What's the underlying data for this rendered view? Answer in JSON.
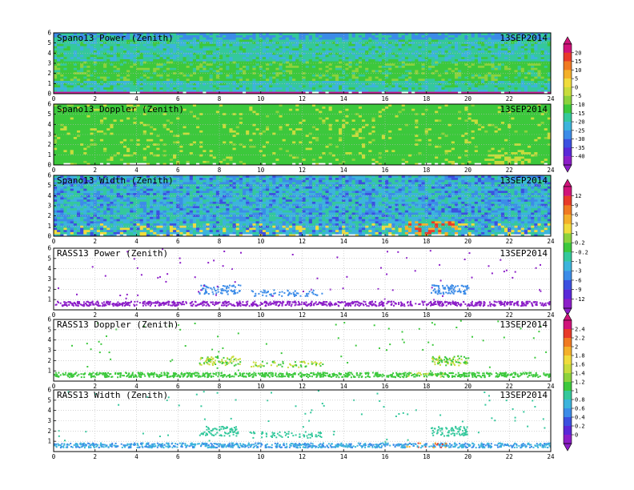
{
  "chart_data": [
    {
      "type": "heatmap",
      "title": "Spano13 Power (Zenith)",
      "date": "13SEP2014",
      "xlim": [
        0,
        24
      ],
      "ylim": [
        0,
        6
      ],
      "x_ticks": [
        "0",
        "2",
        "4",
        "6",
        "8",
        "10",
        "12",
        "14",
        "16",
        "18",
        "20",
        "22",
        "24"
      ],
      "y_ticks": [
        "0",
        "1",
        "2",
        "3",
        "4",
        "5",
        "6"
      ],
      "grid": true,
      "colorbar_ref": "A"
    },
    {
      "type": "heatmap",
      "title": "Spano13 Doppler (Zenith)",
      "date": "13SEP2014",
      "xlim": [
        0,
        24
      ],
      "ylim": [
        0,
        6
      ],
      "x_ticks": [
        "0",
        "2",
        "4",
        "6",
        "8",
        "10",
        "12",
        "14",
        "16",
        "18",
        "20",
        "22",
        "24"
      ],
      "y_ticks": [
        "0",
        "1",
        "2",
        "3",
        "4",
        "5",
        "6"
      ],
      "grid": true,
      "colorbar_ref": "A"
    },
    {
      "type": "heatmap",
      "title": "Spano13 Width (Zenith)",
      "date": "13SEP2014",
      "xlim": [
        0,
        24
      ],
      "ylim": [
        0,
        6
      ],
      "x_ticks": [
        "0",
        "2",
        "4",
        "6",
        "8",
        "10",
        "12",
        "14",
        "16",
        "18",
        "20",
        "22",
        "24"
      ],
      "y_ticks": [
        "0",
        "1",
        "2",
        "3",
        "4",
        "5",
        "6"
      ],
      "grid": true,
      "colorbar_ref": "B"
    },
    {
      "type": "scatter",
      "title": "RASS13 Power (Zenith)",
      "date": "13SEP2014",
      "xlim": [
        0,
        24
      ],
      "ylim": [
        0,
        6
      ],
      "x_ticks": [
        "0",
        "2",
        "4",
        "6",
        "8",
        "10",
        "12",
        "14",
        "16",
        "18",
        "20",
        "22",
        "24"
      ],
      "y_ticks": [
        "1",
        "2",
        "3",
        "4",
        "5",
        "6"
      ],
      "grid": true,
      "colorbar_ref": "B"
    },
    {
      "type": "scatter",
      "title": "RASS13 Doppler (Zenith)",
      "date": "13SEP2014",
      "xlim": [
        0,
        24
      ],
      "ylim": [
        0,
        6
      ],
      "x_ticks": [
        "0",
        "2",
        "4",
        "6",
        "8",
        "10",
        "12",
        "14",
        "16",
        "18",
        "20",
        "22",
        "24"
      ],
      "y_ticks": [
        "1",
        "2",
        "3",
        "4",
        "5",
        "6"
      ],
      "grid": true,
      "colorbar_ref": "C"
    },
    {
      "type": "scatter",
      "title": "RASS13 Width (Zenith)",
      "date": "13SEP2014",
      "xlim": [
        0,
        24
      ],
      "ylim": [
        0,
        6
      ],
      "x_ticks": [
        "0",
        "2",
        "4",
        "6",
        "8",
        "10",
        "12",
        "14",
        "16",
        "18",
        "20",
        "22",
        "24"
      ],
      "y_ticks": [
        "1",
        "2",
        "3",
        "4",
        "5",
        "6"
      ],
      "grid": true,
      "colorbar_ref": "C"
    }
  ],
  "colorbars": {
    "A": {
      "labels": [
        "20",
        "15",
        "10",
        "5",
        "0",
        "-5",
        "-10",
        "-15",
        "-20",
        "-25",
        "-30",
        "-35",
        "-40"
      ],
      "colors": [
        "#d0147a",
        "#e83a2a",
        "#f07a22",
        "#f4b02a",
        "#f0dc3c",
        "#c8dc3c",
        "#8cd23c",
        "#3cc83c",
        "#34c89c",
        "#3cb4dc",
        "#3c8ce8",
        "#3c50e0",
        "#5a28d8",
        "#8c1ec8"
      ]
    },
    "B": {
      "labels": [
        "12",
        "9",
        "6",
        "3",
        "1",
        "0.2",
        "-0.2",
        "-1",
        "-3",
        "-6",
        "-9",
        "-12"
      ],
      "colors": [
        "#d0147a",
        "#e83a2a",
        "#f07a22",
        "#f4b02a",
        "#f0dc3c",
        "#8cd23c",
        "#3cc83c",
        "#34c89c",
        "#3cb4dc",
        "#3c8ce8",
        "#3c50e0",
        "#5a28d8",
        "#8c1ec8"
      ]
    },
    "C": {
      "labels": [
        "2.4",
        "2.2",
        "2",
        "1.8",
        "1.6",
        "1.4",
        "1.2",
        "1",
        "0.8",
        "0.6",
        "0.4",
        "0.2",
        "0"
      ],
      "colors": [
        "#d0147a",
        "#e83a2a",
        "#f07a22",
        "#f4b02a",
        "#f0dc3c",
        "#c8dc3c",
        "#8cd23c",
        "#3cc83c",
        "#34c89c",
        "#3cb4dc",
        "#3c8ce8",
        "#3c50e0",
        "#5a28d8",
        "#8c1ec8"
      ]
    }
  }
}
